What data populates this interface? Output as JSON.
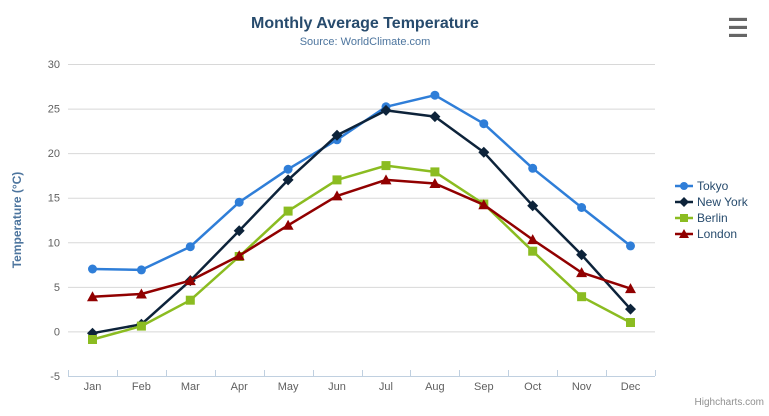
{
  "header": {
    "title": "Monthly Average Temperature",
    "subtitle": "Source: WorldClimate.com",
    "menu_icon": "hamburger"
  },
  "credits": {
    "label": "Highcharts.com"
  },
  "chart_data": {
    "type": "line",
    "title": "Monthly Average Temperature",
    "subtitle": "Source: WorldClimate.com",
    "categories": [
      "Jan",
      "Feb",
      "Mar",
      "Apr",
      "May",
      "Jun",
      "Jul",
      "Aug",
      "Sep",
      "Oct",
      "Nov",
      "Dec"
    ],
    "series": [
      {
        "name": "Tokyo",
        "color": "#2f7ed8",
        "marker": "circle",
        "values": [
          7.0,
          6.9,
          9.5,
          14.5,
          18.2,
          21.5,
          25.2,
          26.5,
          23.3,
          18.3,
          13.9,
          9.6
        ]
      },
      {
        "name": "New York",
        "color": "#0d233a",
        "marker": "diamond",
        "values": [
          -0.2,
          0.8,
          5.7,
          11.3,
          17.0,
          22.0,
          24.8,
          24.1,
          20.1,
          14.1,
          8.6,
          2.5
        ]
      },
      {
        "name": "Berlin",
        "color": "#8bbc21",
        "marker": "square",
        "values": [
          -0.9,
          0.6,
          3.5,
          8.4,
          13.5,
          17.0,
          18.6,
          17.9,
          14.3,
          9.0,
          3.9,
          1.0
        ]
      },
      {
        "name": "London",
        "color": "#910000",
        "marker": "triangle",
        "values": [
          3.9,
          4.2,
          5.7,
          8.5,
          11.9,
          15.2,
          17.0,
          16.6,
          14.2,
          10.3,
          6.6,
          4.8
        ]
      }
    ],
    "xlabel": "",
    "ylabel": "Temperature (°C)",
    "ylim": [
      -5,
      30
    ],
    "ytick_interval": 5,
    "grid": true,
    "legend_position": "right",
    "colors": {
      "title": "#274b6d",
      "subtitle": "#4d759e",
      "axis_labels": "#606060",
      "gridline": "#d8d8d8",
      "axis_line": "#c0d0e0",
      "credits": "#909090"
    }
  }
}
